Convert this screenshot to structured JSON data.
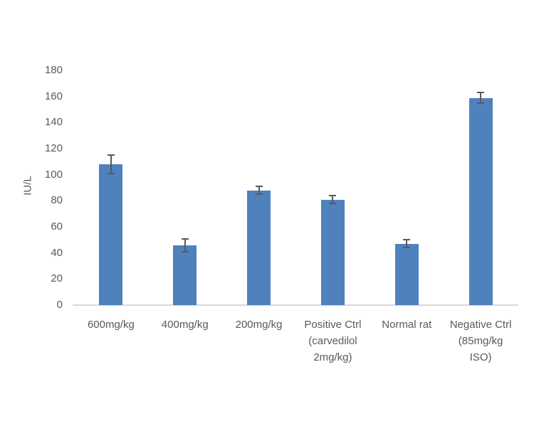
{
  "chart_data": {
    "type": "bar",
    "title": "",
    "ylabel": "IU/L",
    "xlabel": "",
    "categories": [
      [
        "600mg/kg"
      ],
      [
        "400mg/kg"
      ],
      [
        "200mg/kg"
      ],
      [
        "Positive Ctrl",
        "(carvedilol",
        "2mg/kg)"
      ],
      [
        "Normal rat"
      ],
      [
        "Negative Ctrl",
        "(85mg/kg",
        "ISO)"
      ]
    ],
    "values": [
      108,
      46,
      88,
      81,
      47,
      159
    ],
    "errors": [
      7,
      5,
      3,
      3,
      3,
      4
    ],
    "ylim": [
      0,
      180
    ],
    "ytick_step": 20,
    "yticks": [
      0,
      20,
      40,
      60,
      80,
      100,
      120,
      140,
      160,
      180
    ],
    "grid": false,
    "legend": false,
    "colors": {
      "bar": "#4F81BD",
      "error_bar": "#595959",
      "axis_line": "#D9D9D9",
      "text": "#595959",
      "background": "#FFFFFF"
    }
  }
}
